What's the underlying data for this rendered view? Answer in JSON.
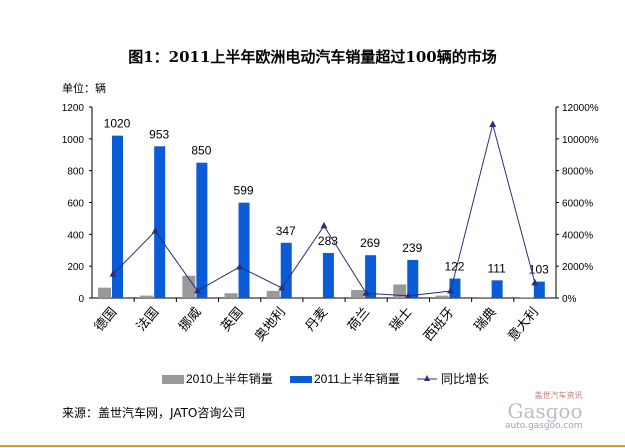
{
  "title": "图1：2011上半年欧洲电动汽车销量超过100辆的市场",
  "unit": "单位：辆",
  "source": "来源：盖世汽车网，JATO咨询公司",
  "watermark": {
    "brand": "Gasgoo",
    "tagline": "盖世汽车资讯",
    "url": "auto.gasgoo.com"
  },
  "chart_data": {
    "type": "bar",
    "title": "图1：2011上半年欧洲电动汽车销量超过100辆的市场",
    "categories": [
      "德国",
      "法国",
      "挪威",
      "英国",
      "奥地利",
      "丹麦",
      "荷兰",
      "瑞士",
      "西班牙",
      "瑞典",
      "意大利"
    ],
    "series": [
      {
        "name": "2010上半年销量",
        "type": "bar",
        "axis": "left",
        "color": "#999999",
        "values": [
          65,
          15,
          140,
          30,
          45,
          0,
          50,
          85,
          15,
          1,
          5
        ]
      },
      {
        "name": "2011上半年销量",
        "type": "bar",
        "axis": "left",
        "color": "#0a5bd6",
        "values": [
          1020,
          953,
          850,
          599,
          347,
          283,
          269,
          239,
          122,
          111,
          103
        ],
        "data_labels": true
      },
      {
        "name": "同比增长",
        "type": "line",
        "axis": "right",
        "color": "#2b2e7a",
        "marker": "triangle",
        "values": [
          1500,
          4200,
          450,
          1950,
          630,
          4530,
          300,
          130,
          440,
          10900,
          950
        ]
      }
    ],
    "ylim": [
      0,
      1200
    ],
    "yticks": [
      "0",
      "200",
      "400",
      "600",
      "800",
      "1000",
      "1200"
    ],
    "y2lim": [
      0,
      12000
    ],
    "y2ticks": [
      "0%",
      "2000%",
      "4000%",
      "6000%",
      "8000%",
      "10000%",
      "12000%"
    ],
    "grid": false,
    "legend": "bottom"
  }
}
